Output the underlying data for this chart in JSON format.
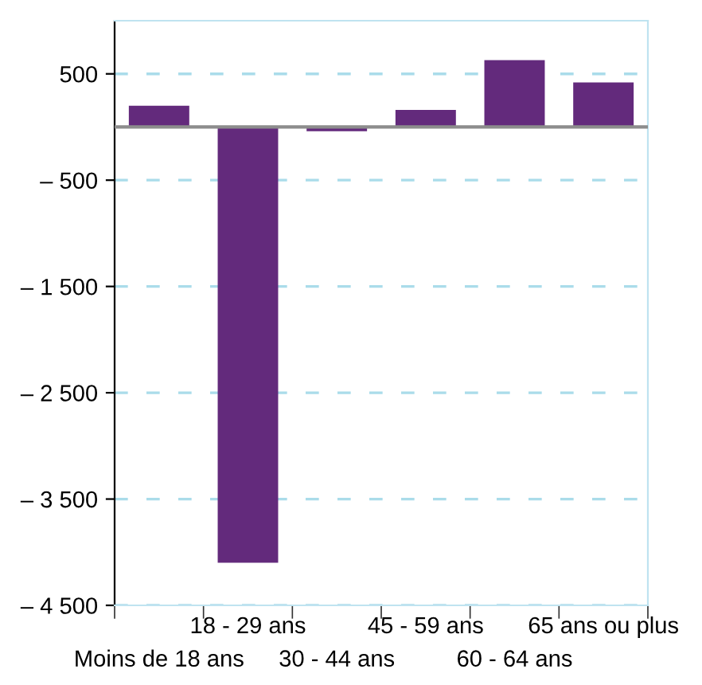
{
  "chart_data": {
    "type": "bar",
    "categories": [
      "Moins de 18 ans",
      "18 - 29 ans",
      "30 - 44 ans",
      "45 - 59 ans",
      "60 - 64 ans",
      "65 ans ou plus"
    ],
    "values": [
      200,
      -4100,
      -40,
      160,
      630,
      420
    ],
    "color": "#632a7c",
    "ylim": [
      -4500,
      1000
    ],
    "yticks": [
      {
        "value": -4500,
        "label": "– 4 500"
      },
      {
        "value": -3500,
        "label": "– 3 500"
      },
      {
        "value": -2500,
        "label": "– 2 500"
      },
      {
        "value": -1500,
        "label": "– 1 500"
      },
      {
        "value": -500,
        "label": "– 500"
      },
      500
    ],
    "grid": "y",
    "ref_lines": [
      {
        "axis": "y",
        "value": 0,
        "color": "#8c8c8c",
        "line_style": "solid"
      }
    ]
  }
}
